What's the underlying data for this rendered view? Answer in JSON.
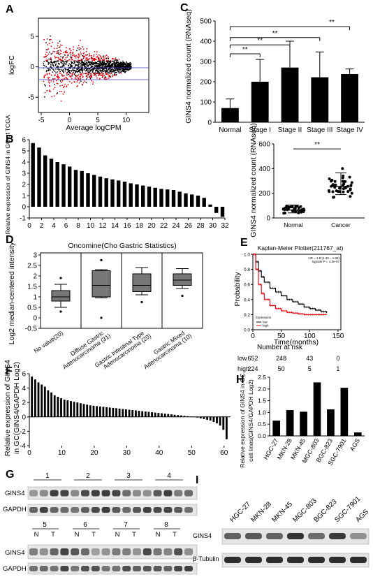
{
  "panels": {
    "A": "A",
    "B": "B",
    "C": "C",
    "D": "D",
    "E": "E",
    "F": "F",
    "G": "G",
    "H": "H",
    "I": "I"
  },
  "colors": {
    "bar": "#000000",
    "box": "#777777",
    "red": "#e8000b",
    "black_dots": "#000000",
    "blue_line": "#3a3acb"
  },
  "chart_data": [
    {
      "id": "A",
      "type": "scatter",
      "xlabel": "Average logCPM",
      "ylabel": "logFC",
      "xticks": [
        "-5",
        "0",
        "5",
        "10"
      ],
      "yticks": [
        "5",
        "0",
        "-5"
      ],
      "xlim": [
        -5.5,
        14
      ],
      "ylim": [
        -7.5,
        8
      ],
      "hlines": [
        1,
        -1
      ]
    },
    {
      "id": "B",
      "type": "bar",
      "ylabel": "Relative expression of GINS4 in GC of TCGA",
      "yticks": [
        "6",
        "5",
        "4",
        "3",
        "2",
        "1",
        "0",
        "-1"
      ],
      "xticks": [
        "0",
        "2",
        "4",
        "6",
        "8",
        "10",
        "12",
        "14",
        "16",
        "18",
        "20",
        "22",
        "24",
        "26",
        "28",
        "30",
        "32"
      ],
      "ylim": [
        -1,
        6
      ],
      "values": [
        5.7,
        5.3,
        4.6,
        4.3,
        4.0,
        3.8,
        3.6,
        3.3,
        3.2,
        3.0,
        2.85,
        2.7,
        2.55,
        2.45,
        2.35,
        2.25,
        2.1,
        2.0,
        1.9,
        1.8,
        1.7,
        1.6,
        1.55,
        1.5,
        1.35,
        1.2,
        1.1,
        1.0,
        0.8,
        0.2,
        -0.55,
        -0.9
      ]
    },
    {
      "id": "C_top",
      "type": "bar",
      "ylabel": "GINS4 normalized count (RNAseq)",
      "categories": [
        "Normal",
        "Stage I",
        "Stage II",
        "Stage III",
        "Stage IV"
      ],
      "values": [
        70,
        200,
        270,
        222,
        238
      ],
      "errors": [
        45,
        110,
        130,
        125,
        25
      ],
      "yticks": [
        "0",
        "100",
        "200",
        "300",
        "400",
        "500"
      ],
      "ylim": [
        0,
        500
      ],
      "significance": [
        "**",
        "**",
        "**",
        "**"
      ]
    },
    {
      "id": "C_bottom",
      "type": "scatter",
      "ylabel": "GINS4 normalized count (RNAseq)",
      "categories": [
        "Normal",
        "Cancer"
      ],
      "means": [
        65,
        255
      ],
      "sd": [
        40,
        110
      ],
      "yticks": [
        "0",
        "200",
        "400",
        "600"
      ],
      "ylim": [
        0,
        600
      ],
      "significance": "**"
    },
    {
      "id": "D",
      "type": "box",
      "title": "Oncomine(Cho Gastric Statistics)",
      "ylabel": "Log2 median-centered intensity",
      "yticks": [
        "3",
        "2.5",
        "2",
        "1.5",
        "1",
        "0.5",
        "0",
        "-0.5"
      ],
      "ylim": [
        -0.5,
        3.1
      ],
      "categories": [
        "No value(20)",
        "Diffuse Gastric Adenocarcinoma (31)",
        "Gastric Intestinal Type Adenocarcinoma (20)",
        "Gastric Mixed Adenocarcinoma (10)"
      ],
      "cat_line1": [
        "No value(20)",
        "Diffuse Gastric",
        "Gastric Intestinal Type",
        "Gastric Mixed"
      ],
      "cat_line2": [
        "",
        "Adenocarcinoma (31)",
        "Adenocarcinoma (20)",
        "Adenocarcinoma (10)"
      ],
      "boxes": [
        {
          "min": 0.5,
          "q1": 0.8,
          "median": 1.0,
          "q3": 1.3,
          "max": 1.6,
          "out": [
            0.3,
            1.9
          ]
        },
        {
          "min": 0.95,
          "q1": 1.0,
          "median": 1.55,
          "q3": 2.25,
          "max": 2.3,
          "out": [
            2.75,
            0.0
          ]
        },
        {
          "min": 1.1,
          "q1": 1.25,
          "median": 1.55,
          "q3": 2.1,
          "max": 2.4,
          "out": [
            0.75
          ]
        },
        {
          "min": 1.4,
          "q1": 1.55,
          "median": 1.8,
          "q3": 2.1,
          "max": 2.35,
          "out": [
            1.05
          ]
        }
      ]
    },
    {
      "id": "E",
      "type": "line",
      "title": "Kaplan-Meier Plotter(211767_at)",
      "ylabel": "Probability",
      "xlabel": "Time(months)",
      "xticks": [
        "0",
        "50",
        "100",
        "150"
      ],
      "yticks": [
        "0.0",
        "0.2",
        "0.4",
        "0.6",
        "0.8",
        "1.0"
      ],
      "xlim": [
        0,
        155
      ],
      "ylim": [
        0,
        1
      ],
      "hr_text": "HR = 1.8 (1.33 – 1.83)",
      "logrank_text": "logrank P = 4.3e-07",
      "legend_title": "Expression",
      "legend_items": [
        "low",
        "high"
      ],
      "series": [
        {
          "name": "low",
          "x": [
            0,
            5,
            10,
            15,
            20,
            30,
            40,
            50,
            60,
            70,
            80,
            90,
            100,
            110,
            120,
            130
          ],
          "y": [
            1.0,
            0.9,
            0.78,
            0.7,
            0.63,
            0.55,
            0.5,
            0.45,
            0.4,
            0.37,
            0.34,
            0.3,
            0.28,
            0.26,
            0.24,
            0.22
          ]
        },
        {
          "name": "high",
          "x": [
            0,
            5,
            10,
            15,
            20,
            30,
            40,
            50,
            60,
            70,
            80,
            90,
            100,
            110,
            120,
            130
          ],
          "y": [
            1.0,
            0.8,
            0.6,
            0.48,
            0.4,
            0.32,
            0.28,
            0.25,
            0.23,
            0.22,
            0.21,
            0.2,
            0.2,
            0.2,
            0.2,
            0.2
          ]
        }
      ],
      "risk_title": "Number at risk",
      "risk_rows": [
        {
          "label": "low",
          "values": [
            "652",
            "248",
            "43",
            "0"
          ]
        },
        {
          "label": "high",
          "values": [
            "224",
            "50",
            "5",
            "1"
          ]
        }
      ]
    },
    {
      "id": "F",
      "type": "bar",
      "ylabel_line1": "Relative expression of GINS4",
      "ylabel_line2": "in GC(GINS4/GAPDH Log2)",
      "yticks": [
        "6",
        "4",
        "2",
        "0",
        "-2",
        "-4"
      ],
      "ylim": [
        -4,
        6
      ],
      "xticks": [
        "0",
        "10",
        "20",
        "30",
        "40",
        "50",
        "60"
      ],
      "values": [
        5.6,
        5.2,
        4.8,
        4.5,
        4.2,
        3.7,
        3.4,
        3.0,
        2.8,
        2.6,
        2.4,
        2.3,
        2.2,
        2.1,
        2.0,
        1.9,
        1.8,
        1.7,
        1.6,
        1.55,
        1.5,
        1.45,
        1.4,
        1.35,
        1.3,
        1.25,
        1.2,
        1.15,
        1.1,
        1.05,
        1.0,
        0.95,
        0.9,
        0.85,
        0.8,
        0.75,
        0.7,
        0.65,
        0.6,
        0.55,
        0.5,
        0.45,
        0.4,
        0.35,
        0.3,
        0.25,
        0.2,
        0.15,
        0.1,
        0.05,
        -0.05,
        -0.1,
        -0.2,
        -0.3,
        -0.4,
        -0.5,
        -0.7,
        -0.9,
        -1.2,
        -1.8,
        -3.1
      ]
    },
    {
      "id": "H",
      "type": "bar",
      "ylabel_line1": "Relative expression of GINS4 in GC",
      "ylabel_line2": "cell lines(GINS4/GAPDH Log2)",
      "yticks": [
        "2.5",
        "2.0",
        "1.5",
        "1.0",
        "0.5",
        "0.0"
      ],
      "ylim": [
        0,
        2.5
      ],
      "categories": [
        "HGC-27",
        "MKN-28",
        "MKN-45",
        "MGC-803",
        "BGC-823",
        "SGC-7901",
        "AGS"
      ],
      "values": [
        0.65,
        1.1,
        1.03,
        2.28,
        1.13,
        2.05,
        0.15
      ]
    }
  ],
  "blots": {
    "G": {
      "rows_top": [
        "GINS4",
        "GAPDH"
      ],
      "rows_bottom": [
        "GINS4",
        "GAPDH"
      ],
      "numbers_top": [
        "1",
        "2",
        "3",
        "4"
      ],
      "numbers_bottom": [
        "5",
        "6",
        "7",
        "8"
      ],
      "n_label": "N",
      "t_label": "T"
    },
    "I": {
      "lanes": [
        "HGC-27",
        "MKN-28",
        "MKN-45",
        "MGC-803",
        "BGC-823",
        "SGC-7901",
        "AGS"
      ],
      "rows": [
        "GINS4",
        "β-Tubulin"
      ]
    }
  }
}
